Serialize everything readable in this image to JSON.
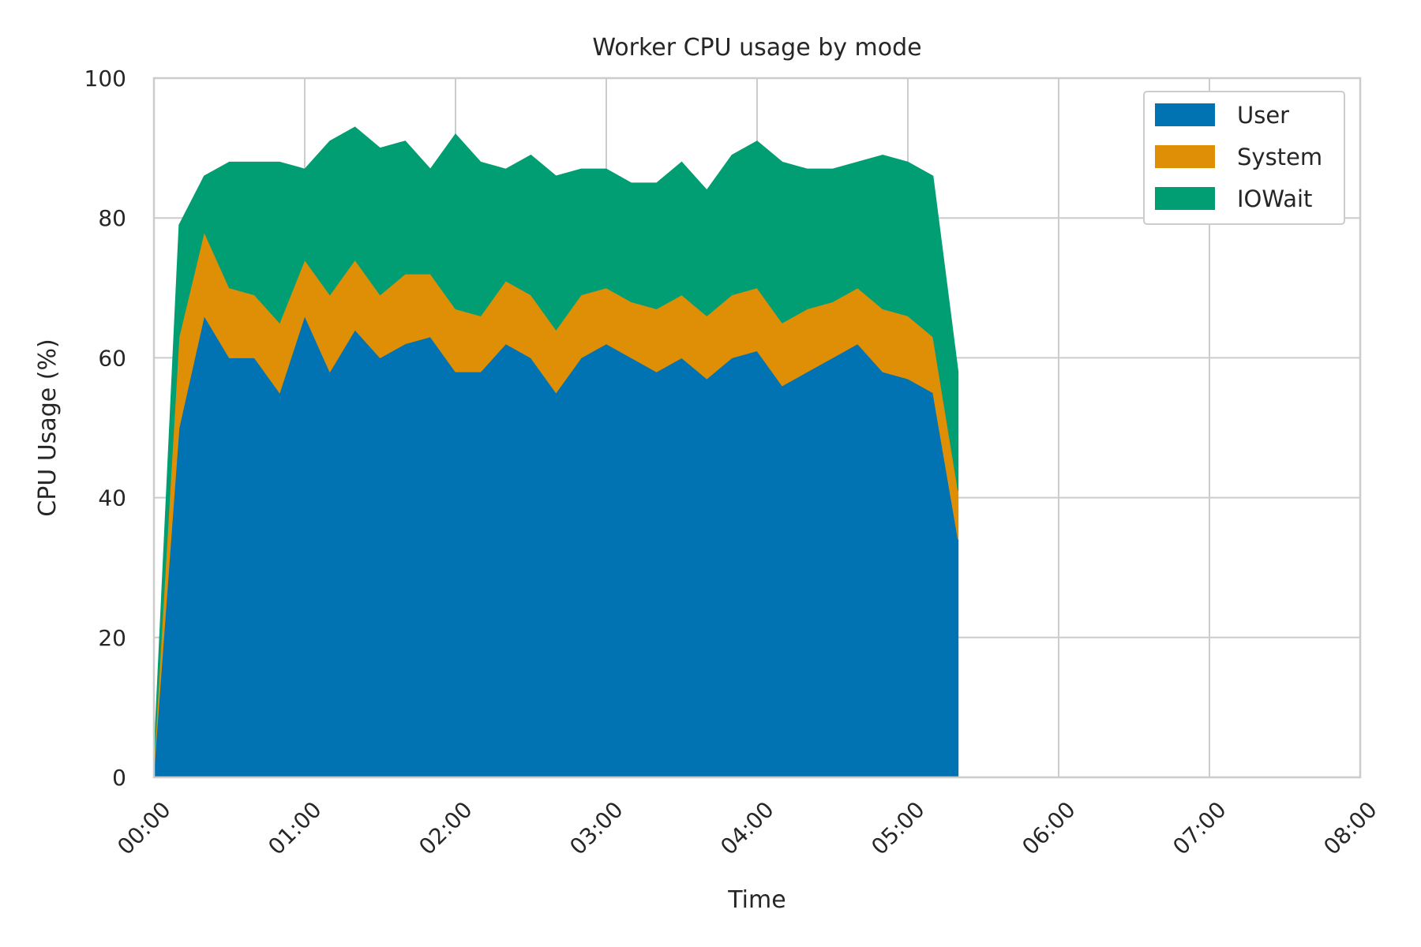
{
  "chart_data": {
    "type": "area",
    "stacked": true,
    "title": "Worker CPU usage by mode",
    "xlabel": "Time",
    "ylabel": "CPU Usage (%)",
    "xlim": [
      "00:00",
      "08:00"
    ],
    "ylim": [
      0,
      100
    ],
    "x_ticks": [
      "00:00",
      "01:00",
      "02:00",
      "03:00",
      "04:00",
      "05:00",
      "06:00",
      "07:00",
      "08:00"
    ],
    "y_ticks": [
      0,
      20,
      40,
      60,
      80,
      100
    ],
    "grid": true,
    "legend_position": "top-right",
    "x": [
      "00:00",
      "00:10",
      "00:20",
      "00:30",
      "00:40",
      "00:50",
      "01:00",
      "01:10",
      "01:20",
      "01:30",
      "01:40",
      "01:50",
      "02:00",
      "02:10",
      "02:20",
      "02:30",
      "02:40",
      "02:50",
      "03:00",
      "03:10",
      "03:20",
      "03:30",
      "03:40",
      "03:50",
      "04:00",
      "04:10",
      "04:20",
      "04:30",
      "04:40",
      "04:50",
      "05:00",
      "05:10",
      "05:20"
    ],
    "series": [
      {
        "name": "User",
        "color": "#0173B2",
        "values": [
          1,
          50,
          66,
          60,
          60,
          55,
          66,
          58,
          64,
          60,
          62,
          63,
          58,
          58,
          62,
          60,
          55,
          60,
          62,
          60,
          58,
          60,
          57,
          60,
          61,
          56,
          58,
          60,
          62,
          58,
          57,
          55,
          34
        ]
      },
      {
        "name": "System",
        "color": "#DE8F05",
        "values": [
          1,
          13,
          12,
          10,
          9,
          10,
          8,
          11,
          10,
          9,
          10,
          9,
          9,
          8,
          9,
          9,
          9,
          9,
          8,
          8,
          9,
          9,
          9,
          9,
          9,
          9,
          9,
          8,
          8,
          9,
          9,
          8,
          7
        ]
      },
      {
        "name": "IOWait",
        "color": "#029E73",
        "values": [
          1,
          16,
          8,
          18,
          19,
          23,
          13,
          22,
          19,
          21,
          19,
          15,
          25,
          22,
          16,
          20,
          22,
          18,
          17,
          17,
          18,
          19,
          18,
          20,
          21,
          23,
          20,
          19,
          18,
          22,
          22,
          23,
          17
        ]
      }
    ]
  }
}
